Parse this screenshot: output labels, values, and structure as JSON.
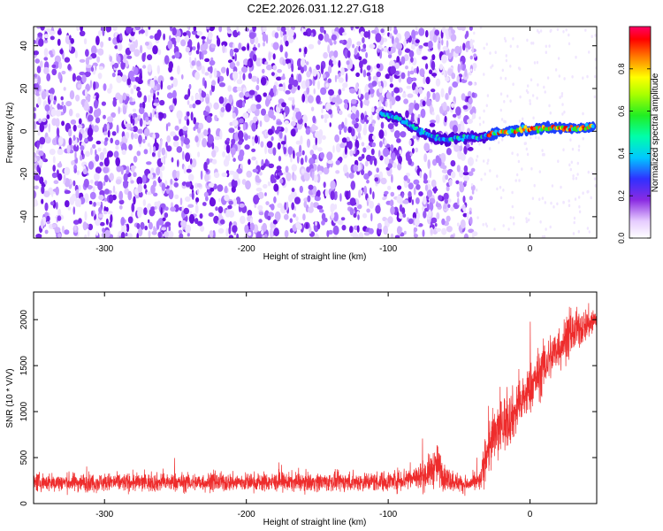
{
  "title": "C2E2.2026.031.12.27.G18",
  "chart_data": [
    {
      "type": "heatmap",
      "xlabel": "Height of straight line (km)",
      "ylabel": "Frequency (Hz)",
      "xlim": [
        -350,
        47
      ],
      "ylim": [
        -50,
        49
      ],
      "x_ticks": [
        -300,
        -200,
        -100,
        0
      ],
      "y_ticks": [
        -40,
        -20,
        0,
        20,
        40
      ],
      "x_tick_labels": [
        "-300",
        "-200",
        "-100",
        "0"
      ],
      "y_tick_labels": [
        "-40",
        "-20",
        "0",
        "20",
        "40"
      ],
      "noise_region_x": [
        -350,
        -42
      ],
      "signal_track": [
        {
          "x": -105,
          "y": 8
        },
        {
          "x": -95,
          "y": 7
        },
        {
          "x": -88,
          "y": 4
        },
        {
          "x": -80,
          "y": 1
        },
        {
          "x": -72,
          "y": -2
        },
        {
          "x": -60,
          "y": -4
        },
        {
          "x": -45,
          "y": -3
        },
        {
          "x": -35,
          "y": -3
        },
        {
          "x": -25,
          "y": -1
        },
        {
          "x": -15,
          "y": 0
        },
        {
          "x": -5,
          "y": 1
        },
        {
          "x": 5,
          "y": 1
        },
        {
          "x": 15,
          "y": 1.5
        },
        {
          "x": 25,
          "y": 1.5
        },
        {
          "x": 35,
          "y": 1.5
        },
        {
          "x": 45,
          "y": 2
        }
      ],
      "colorbar": {
        "label": "Normalized spectral amplitude",
        "range": [
          0,
          1
        ],
        "ticks": [
          0.0,
          0.2,
          0.4,
          0.6,
          0.8
        ],
        "tick_labels": [
          "0.0",
          "0.2",
          "0.4",
          "0.6",
          "0.8"
        ]
      },
      "grid": false,
      "legend": false
    },
    {
      "type": "line",
      "xlabel": "Height of straight line (km)",
      "ylabel": "SNR (10 * V/V)",
      "xlim": [
        -350,
        47
      ],
      "ylim": [
        0,
        2300
      ],
      "x_ticks": [
        -300,
        -200,
        -100,
        0
      ],
      "y_ticks": [
        0,
        500,
        1000,
        1500,
        2000
      ],
      "x_tick_labels": [
        "-300",
        "-200",
        "-100",
        "0"
      ],
      "y_tick_labels": [
        "0",
        "500",
        "1000",
        "1500",
        "2000"
      ],
      "color": "#ee2c2c",
      "envelope": [
        {
          "x": -350,
          "mean": 230,
          "spread": 110
        },
        {
          "x": -250,
          "mean": 230,
          "spread": 110
        },
        {
          "x": -150,
          "mean": 235,
          "spread": 110
        },
        {
          "x": -100,
          "mean": 240,
          "spread": 120
        },
        {
          "x": -75,
          "mean": 300,
          "spread": 170
        },
        {
          "x": -65,
          "mean": 420,
          "spread": 250
        },
        {
          "x": -60,
          "mean": 280,
          "spread": 150
        },
        {
          "x": -45,
          "mean": 200,
          "spread": 90
        },
        {
          "x": -35,
          "mean": 250,
          "spread": 120
        },
        {
          "x": -30,
          "mean": 600,
          "spread": 350
        },
        {
          "x": -20,
          "mean": 850,
          "spread": 350
        },
        {
          "x": -10,
          "mean": 1000,
          "spread": 300
        },
        {
          "x": 0,
          "mean": 1250,
          "spread": 300
        },
        {
          "x": 10,
          "mean": 1500,
          "spread": 300
        },
        {
          "x": 20,
          "mean": 1700,
          "spread": 280
        },
        {
          "x": 30,
          "mean": 1850,
          "spread": 250
        },
        {
          "x": 40,
          "mean": 1950,
          "spread": 200
        },
        {
          "x": 47,
          "mean": 2000,
          "spread": 180
        }
      ],
      "grid": false,
      "legend": false
    }
  ]
}
